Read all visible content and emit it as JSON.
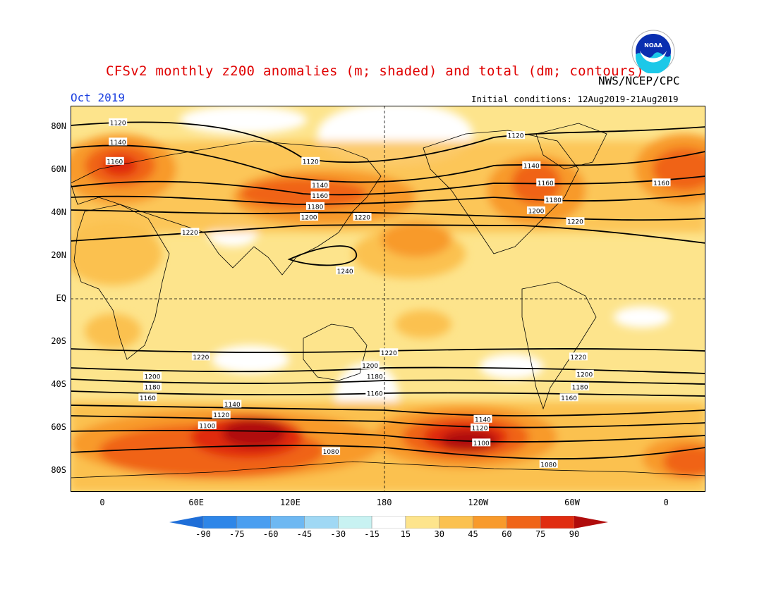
{
  "title": "CFSv2 monthly z200 anomalies (m; shaded) and total (dm; contours)",
  "agency": "NWS/NCEP/CPC",
  "logo_text": "NOAA",
  "month": "Oct 2019",
  "initial_conditions": "Initial conditions: 12Aug2019-21Aug2019",
  "lat_labels": [
    "80N",
    "60N",
    "40N",
    "20N",
    "EQ",
    "20S",
    "40S",
    "60S",
    "80S"
  ],
  "lon_labels": [
    "0",
    "60E",
    "120E",
    "180",
    "120W",
    "60W",
    "0"
  ],
  "colorbar": {
    "labels": [
      "-90",
      "-75",
      "-60",
      "-45",
      "-30",
      "-15",
      "15",
      "30",
      "45",
      "60",
      "75",
      "90"
    ],
    "colors": [
      "#1e6ed8",
      "#2e86e8",
      "#4a9ef0",
      "#6eb8f2",
      "#a0d8f4",
      "#c8f2f2",
      "#ffffff",
      "#fde48c",
      "#fbc150",
      "#f89a2c",
      "#f06418",
      "#e02c10",
      "#b00c0c"
    ]
  },
  "contour_labels": [
    {
      "text": "1120",
      "lon": 10,
      "lat": 82
    },
    {
      "text": "1140",
      "lon": 10,
      "lat": 73
    },
    {
      "text": "1160",
      "lon": 8,
      "lat": 64
    },
    {
      "text": "1160",
      "lon": -3,
      "lat": 54
    },
    {
      "text": "1120",
      "lon": 133,
      "lat": 64
    },
    {
      "text": "1140",
      "lon": 139,
      "lat": 53
    },
    {
      "text": "1160",
      "lon": 139,
      "lat": 48
    },
    {
      "text": "1180",
      "lon": 136,
      "lat": 43
    },
    {
      "text": "1200",
      "lon": 132,
      "lat": 38
    },
    {
      "text": "1220",
      "lon": 166,
      "lat": 38
    },
    {
      "text": "1220",
      "lon": 56,
      "lat": 31
    },
    {
      "text": "1240",
      "lon": 155,
      "lat": 13
    },
    {
      "text": "1120",
      "lon": -96,
      "lat": 76
    },
    {
      "text": "1140",
      "lon": -86,
      "lat": 62
    },
    {
      "text": "1160",
      "lon": -77,
      "lat": 54
    },
    {
      "text": "1180",
      "lon": -72,
      "lat": 46
    },
    {
      "text": "1200",
      "lon": -83,
      "lat": 41
    },
    {
      "text": "1220",
      "lon": -58,
      "lat": 36
    },
    {
      "text": "1220",
      "lon": 63,
      "lat": -27
    },
    {
      "text": "1220",
      "lon": 183,
      "lat": -25
    },
    {
      "text": "1220",
      "lon": -56,
      "lat": -27
    },
    {
      "text": "1200",
      "lon": 32,
      "lat": -36
    },
    {
      "text": "1200",
      "lon": 171,
      "lat": -31
    },
    {
      "text": "1200",
      "lon": -52,
      "lat": -35
    },
    {
      "text": "1180",
      "lon": 32,
      "lat": -41
    },
    {
      "text": "1180",
      "lon": 174,
      "lat": -36
    },
    {
      "text": "1180",
      "lon": -55,
      "lat": -41
    },
    {
      "text": "1160",
      "lon": 29,
      "lat": -46
    },
    {
      "text": "1160",
      "lon": 174,
      "lat": -44
    },
    {
      "text": "1160",
      "lon": -62,
      "lat": -46
    },
    {
      "text": "1140",
      "lon": 83,
      "lat": -49
    },
    {
      "text": "1120",
      "lon": 76,
      "lat": -54
    },
    {
      "text": "1100",
      "lon": 67,
      "lat": -59
    },
    {
      "text": "1080",
      "lon": 146,
      "lat": -71
    },
    {
      "text": "1080",
      "lon": -75,
      "lat": -77
    },
    {
      "text": "1140",
      "lon": -117,
      "lat": -56
    },
    {
      "text": "1120",
      "lon": -119,
      "lat": -60
    },
    {
      "text": "1100",
      "lon": -118,
      "lat": -67
    }
  ]
}
